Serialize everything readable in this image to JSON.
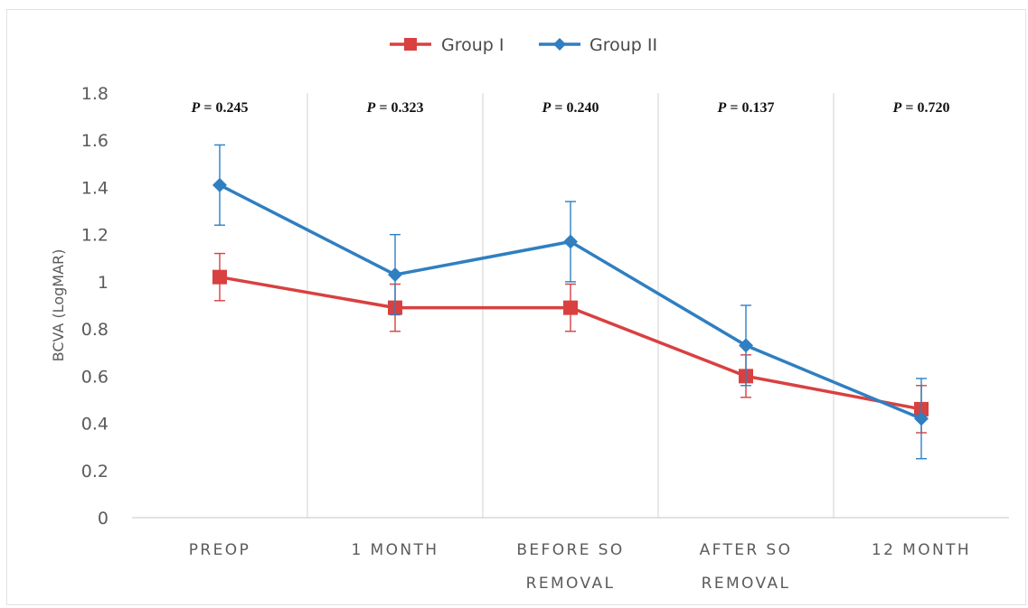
{
  "chart_data": {
    "type": "line",
    "title": "",
    "xlabel": "",
    "ylabel": "BCVA (LogMAR)",
    "ylim": [
      0,
      1.8
    ],
    "yticks": [
      "0",
      "0.2",
      "0.4",
      "0.6",
      "0.8",
      "1",
      "1.2",
      "1.4",
      "1.6",
      "1.8"
    ],
    "ytick_values": [
      0,
      0.2,
      0.4,
      0.6,
      0.8,
      1.0,
      1.2,
      1.4,
      1.6,
      1.8
    ],
    "categories": [
      [
        "PREOP"
      ],
      [
        "1 MONTH"
      ],
      [
        "BEFORE SO",
        "REMOVAL"
      ],
      [
        "AFTER SO",
        "REMOVAL"
      ],
      [
        "12 MONTH"
      ]
    ],
    "p_prefix": "P",
    "p_values": [
      "= 0.245",
      "= 0.323",
      "= 0.240",
      "= 0.137",
      "= 0.720"
    ],
    "grid": "vertical separators between categories",
    "legend": "top-center",
    "series": [
      {
        "name": "Group I",
        "color": "#d94040",
        "marker": "square",
        "values": [
          1.02,
          0.89,
          0.89,
          0.6,
          0.46
        ],
        "errors": [
          0.1,
          0.1,
          0.1,
          0.09,
          0.1
        ]
      },
      {
        "name": "Group II",
        "color": "#2f7fc1",
        "marker": "diamond",
        "values": [
          1.41,
          1.03,
          1.17,
          0.73,
          0.42
        ],
        "errors": [
          0.17,
          0.17,
          0.17,
          0.17,
          0.17
        ]
      }
    ]
  }
}
